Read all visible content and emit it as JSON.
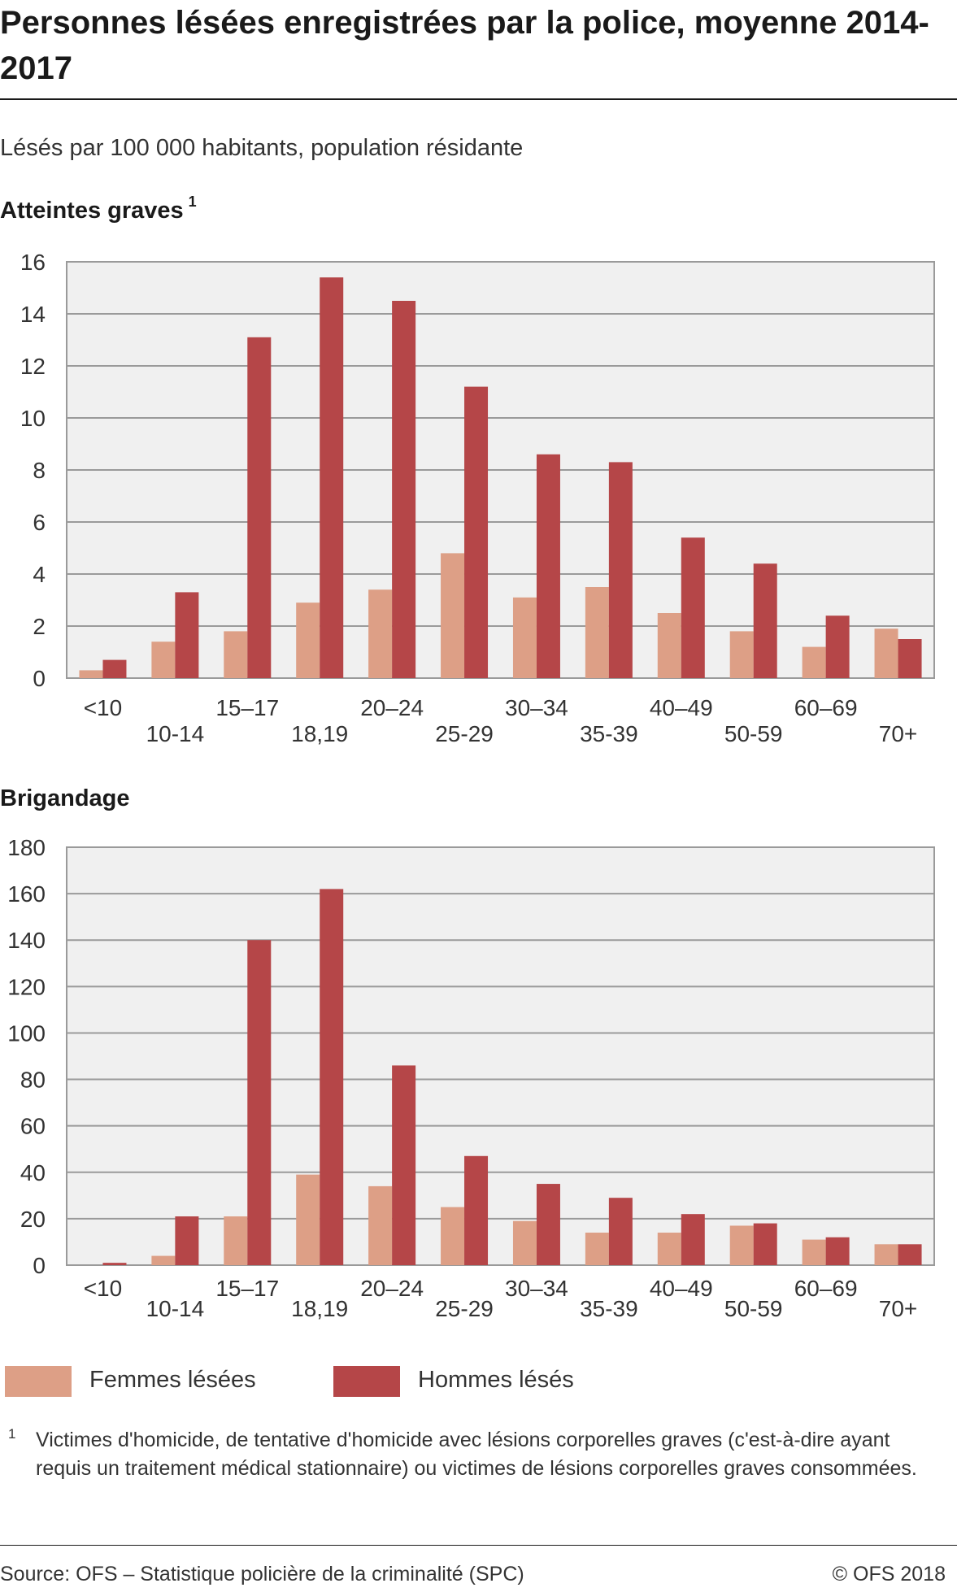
{
  "title": "Personnes lésées enregistrées par la police, moyenne 2014-2017",
  "subtitle": "Lésés par 100 000 habitants, population résidante",
  "colors": {
    "femmes": "#dd9f86",
    "hommes": "#b54648",
    "plot_bg": "#f0f0f0",
    "grid": "#9a9a9a"
  },
  "legend": {
    "femmes": "Femmes lésées",
    "hommes": "Hommes lésés"
  },
  "footnote": {
    "marker": "1",
    "text": "Victimes d'homicide, de tentative d'homicide avec lésions corporelles graves (c'est-à-dire ayant requis un traitement médical stationnaire) ou victimes de lésions corporelles graves consommées."
  },
  "source": "Source: OFS – Statistique policière de la criminalité (SPC)",
  "copyright": "© OFS 2018",
  "chart_data": [
    {
      "type": "bar",
      "title": "Atteintes graves",
      "title_footnote": "1",
      "categories": [
        "<10",
        "10-14",
        "15–17",
        "18,19",
        "20–24",
        "25-29",
        "30–34",
        "35-39",
        "40–49",
        "50-59",
        "60–69",
        "70+"
      ],
      "series": [
        {
          "name": "Femmes lésées",
          "values": [
            0.3,
            1.4,
            1.8,
            2.9,
            3.4,
            4.8,
            3.1,
            3.5,
            2.5,
            1.8,
            1.2,
            1.9
          ]
        },
        {
          "name": "Hommes lésés",
          "values": [
            0.7,
            3.3,
            13.1,
            15.4,
            14.5,
            11.2,
            8.6,
            8.3,
            5.4,
            4.4,
            2.4,
            1.5
          ]
        }
      ],
      "yticks": [
        0,
        2,
        4,
        6,
        8,
        10,
        12,
        14,
        16
      ],
      "ylim": [
        0,
        16
      ],
      "grid": true
    },
    {
      "type": "bar",
      "title": "Brigandage",
      "categories": [
        "<10",
        "10-14",
        "15–17",
        "18,19",
        "20–24",
        "25-29",
        "30–34",
        "35-39",
        "40–49",
        "50-59",
        "60–69",
        "70+"
      ],
      "series": [
        {
          "name": "Femmes lésées",
          "values": [
            0,
            4,
            21,
            39,
            34,
            25,
            19,
            14,
            14,
            17,
            11,
            9
          ]
        },
        {
          "name": "Hommes lésés",
          "values": [
            1,
            21,
            140,
            162,
            86,
            47,
            35,
            29,
            22,
            18,
            12,
            9
          ]
        }
      ],
      "yticks": [
        0,
        20,
        40,
        60,
        80,
        100,
        120,
        140,
        160,
        180
      ],
      "ylim": [
        0,
        180
      ],
      "grid": true
    }
  ]
}
